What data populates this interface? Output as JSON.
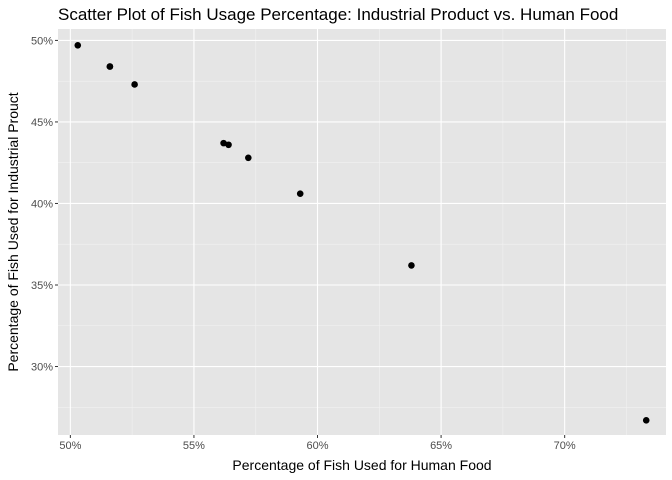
{
  "chart_data": {
    "type": "scatter",
    "title": "Scatter Plot of Fish Usage Percentage: Industrial Product vs. Human Food",
    "xlabel": "Percentage of Fish Used for Human Food",
    "ylabel": "Percentage of Fish Used for Industrial Prouct",
    "xlim": [
      49.5,
      74.1
    ],
    "ylim": [
      25.8,
      50.7
    ],
    "x_ticks": [
      50,
      55,
      60,
      65,
      70
    ],
    "x_tick_labels": [
      "50%",
      "55%",
      "60%",
      "65%",
      "70%"
    ],
    "y_ticks": [
      30,
      35,
      40,
      45,
      50
    ],
    "y_tick_labels": [
      "30%",
      "35%",
      "40%",
      "45%",
      "50%"
    ],
    "grid": true,
    "legend": "none",
    "series": [
      {
        "points": [
          {
            "x": 50.3,
            "y": 49.7
          },
          {
            "x": 51.6,
            "y": 48.4
          },
          {
            "x": 51.6,
            "y": 48.4
          },
          {
            "x": 52.6,
            "y": 47.3
          },
          {
            "x": 56.2,
            "y": 43.7
          },
          {
            "x": 56.4,
            "y": 43.6
          },
          {
            "x": 57.2,
            "y": 42.8
          },
          {
            "x": 59.3,
            "y": 40.6
          },
          {
            "x": 63.8,
            "y": 36.2
          },
          {
            "x": 73.3,
            "y": 26.7
          }
        ]
      }
    ],
    "colors": {
      "panel_background": "#e5e5e5",
      "grid_major": "#ffffff",
      "grid_minor": "#f2f2f2",
      "point": "#000000",
      "tick_label": "#4d4d4d",
      "tick_mark": "#333333"
    }
  }
}
